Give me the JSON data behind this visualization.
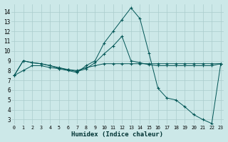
{
  "bg_color": "#cce8e8",
  "grid_color": "#aacccc",
  "line_color": "#005555",
  "xlabel": "Humidex (Indice chaleur)",
  "xticks": [
    0,
    1,
    2,
    3,
    4,
    5,
    6,
    7,
    8,
    9,
    10,
    11,
    12,
    13,
    14,
    15,
    16,
    17,
    18,
    19,
    20,
    21,
    22,
    23
  ],
  "yticks": [
    3,
    4,
    5,
    6,
    7,
    8,
    9,
    10,
    11,
    12,
    13,
    14
  ],
  "ylim": [
    2.5,
    14.8
  ],
  "xlim": [
    -0.3,
    23.3
  ],
  "curve1_x": [
    0,
    1,
    2,
    3,
    4,
    5,
    6,
    7,
    8,
    9,
    10,
    11,
    12,
    13,
    14,
    15,
    16,
    17,
    18,
    19,
    20,
    21,
    22,
    23
  ],
  "curve1_y": [
    7.5,
    9.0,
    8.8,
    8.7,
    8.5,
    8.2,
    8.0,
    7.8,
    8.5,
    9.0,
    10.8,
    12.0,
    13.2,
    14.4,
    13.3,
    9.8,
    6.2,
    5.2,
    5.0,
    4.3,
    3.5,
    3.0,
    2.6,
    8.7
  ],
  "curve2_x": [
    0,
    1,
    2,
    3,
    4,
    5,
    6,
    7,
    8,
    9,
    10,
    11,
    12,
    13,
    14,
    15,
    16,
    17,
    18,
    19,
    20,
    21,
    22,
    23
  ],
  "curve2_y": [
    7.5,
    8.0,
    8.5,
    8.5,
    8.3,
    8.2,
    8.1,
    8.0,
    8.3,
    8.5,
    8.7,
    8.7,
    8.7,
    8.7,
    8.7,
    8.7,
    8.7,
    8.7,
    8.7,
    8.7,
    8.7,
    8.7,
    8.7,
    8.7
  ],
  "curve3_x": [
    0,
    1,
    2,
    3,
    4,
    5,
    6,
    7,
    8,
    9,
    10,
    11,
    12,
    13,
    14,
    15,
    16,
    17,
    18,
    19,
    20,
    21,
    22,
    23
  ],
  "curve3_y": [
    7.5,
    9.0,
    8.8,
    8.7,
    8.5,
    8.3,
    8.1,
    7.9,
    8.2,
    8.8,
    9.7,
    10.5,
    11.5,
    9.0,
    8.8,
    8.6,
    8.5,
    8.5,
    8.5,
    8.5,
    8.5,
    8.5,
    8.5,
    8.7
  ]
}
